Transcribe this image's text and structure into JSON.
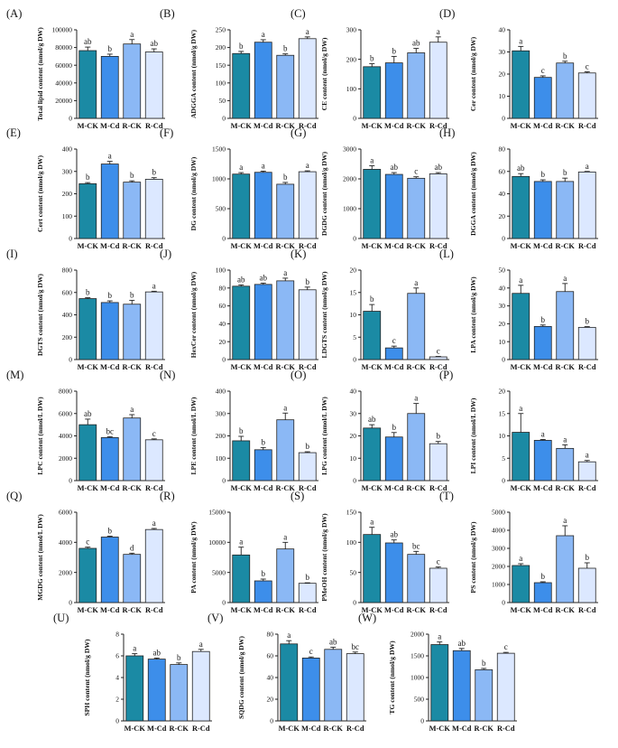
{
  "chart_data": [
    {
      "id": "A",
      "label": "(A)",
      "type": "bar",
      "categories": [
        "M-CK",
        "M-Cd",
        "R-CK",
        "R-Cd"
      ],
      "ylabel": "Total lipid content (nmol/g DW)",
      "ylim": [
        0,
        100000
      ],
      "yticks": [
        "0",
        "20000",
        "40000",
        "60000",
        "80000",
        "100000"
      ],
      "values": [
        76500,
        70000,
        84000,
        75000
      ],
      "errors": [
        4000,
        2500,
        5000,
        3500
      ],
      "letters": [
        "ab",
        "b",
        "a",
        "ab"
      ]
    },
    {
      "id": "B",
      "label": "(B)",
      "type": "bar",
      "categories": [
        "M-CK",
        "M-Cd",
        "R-CK",
        "R-Cd"
      ],
      "ylabel": "ADGGA content (nmol/g DW)",
      "ylim": [
        0,
        250
      ],
      "yticks": [
        "0",
        "50",
        "100",
        "150",
        "200",
        "250"
      ],
      "values": [
        183,
        215,
        178,
        225
      ],
      "errors": [
        6,
        7,
        4,
        5
      ],
      "letters": [
        "b",
        "a",
        "b",
        "a"
      ]
    },
    {
      "id": "C",
      "label": "(C)",
      "type": "bar",
      "categories": [
        "M-CK",
        "M-Cd",
        "R-CK",
        "R-Cd"
      ],
      "ylabel": "CE content (nmol/g DW)",
      "ylim": [
        0,
        300
      ],
      "yticks": [
        "0",
        "100",
        "200",
        "300"
      ],
      "values": [
        175,
        188,
        222,
        258
      ],
      "errors": [
        10,
        22,
        15,
        18
      ],
      "letters": [
        "b",
        "b",
        "ab",
        "a"
      ]
    },
    {
      "id": "D",
      "label": "(D)",
      "type": "bar",
      "categories": [
        "M-CK",
        "M-Cd",
        "R-CK",
        "R-Cd"
      ],
      "ylabel": "Cer content (nmol/g DW)",
      "ylim": [
        0,
        40
      ],
      "yticks": [
        "0",
        "10",
        "20",
        "30",
        "40"
      ],
      "values": [
        30.5,
        18.5,
        25,
        20.5
      ],
      "errors": [
        2,
        0.7,
        0.8,
        0.5
      ],
      "letters": [
        "a",
        "c",
        "b",
        "c"
      ]
    },
    {
      "id": "E",
      "label": "(E)",
      "type": "bar",
      "categories": [
        "M-CK",
        "M-Cd",
        "R-CK",
        "R-Cd"
      ],
      "ylabel": "Cert content (nmol/g DW)",
      "ylim": [
        0,
        400
      ],
      "yticks": [
        "0",
        "100",
        "200",
        "300",
        "400"
      ],
      "values": [
        245,
        333,
        252,
        265
      ],
      "errors": [
        5,
        12,
        6,
        7
      ],
      "letters": [
        "b",
        "a",
        "b",
        "b"
      ]
    },
    {
      "id": "F",
      "label": "(F)",
      "type": "bar",
      "categories": [
        "M-CK",
        "M-Cd",
        "R-CK",
        "R-Cd"
      ],
      "ylabel": "DG content (nmol/g DW)",
      "ylim": [
        0,
        1500
      ],
      "yticks": [
        "0",
        "500",
        "1000",
        "1500"
      ],
      "values": [
        1080,
        1110,
        910,
        1120
      ],
      "errors": [
        25,
        20,
        30,
        15
      ],
      "letters": [
        "a",
        "a",
        "b",
        "a"
      ]
    },
    {
      "id": "G",
      "label": "(G)",
      "type": "bar",
      "categories": [
        "M-CK",
        "M-Cd",
        "R-CK",
        "R-Cd"
      ],
      "ylabel": "DGDG content (nmol/g DW)",
      "ylim": [
        0,
        3000
      ],
      "yticks": [
        "0",
        "1000",
        "2000",
        "3000"
      ],
      "values": [
        2320,
        2150,
        2020,
        2170
      ],
      "errors": [
        120,
        60,
        50,
        40
      ],
      "letters": [
        "a",
        "ab",
        "c",
        "ab"
      ]
    },
    {
      "id": "H",
      "label": "(H)",
      "type": "bar",
      "categories": [
        "M-CK",
        "M-Cd",
        "R-CK",
        "R-Cd"
      ],
      "ylabel": "DGGA content (nmol/g DW)",
      "ylim": [
        0,
        80
      ],
      "yticks": [
        "0",
        "20",
        "40",
        "60",
        "80"
      ],
      "values": [
        55.5,
        51,
        51,
        59.5
      ],
      "errors": [
        2.5,
        1.5,
        3,
        0.5
      ],
      "letters": [
        "ab",
        "b",
        "b",
        "a"
      ]
    },
    {
      "id": "I",
      "label": "(I)",
      "type": "bar",
      "categories": [
        "M-CK",
        "M-Cd",
        "R-CK",
        "R-Cd"
      ],
      "ylabel": "DGTS content (nmol/g DW)",
      "ylim": [
        0,
        800
      ],
      "yticks": [
        "0",
        "200",
        "400",
        "600",
        "800"
      ],
      "values": [
        545,
        510,
        495,
        605
      ],
      "errors": [
        8,
        15,
        35,
        6
      ],
      "letters": [
        "b",
        "b",
        "b",
        "a"
      ]
    },
    {
      "id": "J",
      "label": "(J)",
      "type": "bar",
      "categories": [
        "M-CK",
        "M-Cd",
        "R-CK",
        "R-Cd"
      ],
      "ylabel": "HexCer content (nmol/g DW)",
      "ylim": [
        0,
        100
      ],
      "yticks": [
        "0",
        "20",
        "40",
        "60",
        "80",
        "100"
      ],
      "values": [
        82,
        84,
        88,
        78
      ],
      "errors": [
        1.5,
        1.5,
        3,
        3
      ],
      "letters": [
        "ab",
        "ab",
        "a",
        "b"
      ]
    },
    {
      "id": "K",
      "label": "(K)",
      "type": "bar",
      "categories": [
        "M-CK",
        "M-Cd",
        "R-CK",
        "R-Cd"
      ],
      "ylabel": "LDGTS content (nmol/g DW)",
      "ylim": [
        0,
        20
      ],
      "yticks": [
        "0",
        "5",
        "10",
        "15",
        "20"
      ],
      "values": [
        10.8,
        2.6,
        14.8,
        0.6
      ],
      "errors": [
        1.5,
        0.4,
        1.2,
        0.1
      ],
      "letters": [
        "b",
        "c",
        "a",
        "c"
      ]
    },
    {
      "id": "L",
      "label": "(L)",
      "type": "bar",
      "categories": [
        "M-CK",
        "M-Cd",
        "R-CK",
        "R-Cd"
      ],
      "ylabel": "LPA content (nmol/g DW)",
      "ylim": [
        0,
        50
      ],
      "yticks": [
        "0",
        "10",
        "20",
        "30",
        "40",
        "50"
      ],
      "values": [
        37,
        18.5,
        38,
        18
      ],
      "errors": [
        4.5,
        0.8,
        4.5,
        0.4
      ],
      "letters": [
        "a",
        "b",
        "a",
        "b"
      ]
    },
    {
      "id": "M",
      "label": "(M)",
      "type": "bar",
      "categories": [
        "M-CK",
        "M-Cd",
        "R-CK",
        "R-Cd"
      ],
      "ylabel": "LPC content (nmol/L DW)",
      "ylim": [
        0,
        8000
      ],
      "yticks": [
        "0",
        "2000",
        "4000",
        "6000",
        "8000"
      ],
      "values": [
        5000,
        3850,
        5600,
        3650
      ],
      "errors": [
        500,
        80,
        300,
        80
      ],
      "letters": [
        "ab",
        "bc",
        "a",
        "c"
      ]
    },
    {
      "id": "N",
      "label": "(N)",
      "type": "bar",
      "categories": [
        "M-CK",
        "M-Cd",
        "R-CK",
        "R-Cd"
      ],
      "ylabel": "LPE content (nmol/L DW)",
      "ylim": [
        0,
        400
      ],
      "yticks": [
        "0",
        "100",
        "200",
        "300",
        "400"
      ],
      "values": [
        178,
        138,
        272,
        125
      ],
      "errors": [
        20,
        10,
        30,
        4
      ],
      "letters": [
        "b",
        "b",
        "a",
        "b"
      ]
    },
    {
      "id": "O",
      "label": "(O)",
      "type": "bar",
      "categories": [
        "M-CK",
        "M-Cd",
        "R-CK",
        "R-Cd"
      ],
      "ylabel": "LPG content (nmol/L DW)",
      "ylim": [
        0,
        40
      ],
      "yticks": [
        "0",
        "10",
        "20",
        "30",
        "40"
      ],
      "values": [
        23.5,
        19.5,
        30,
        16.5
      ],
      "errors": [
        1.5,
        2,
        4.5,
        1
      ],
      "letters": [
        "ab",
        "b",
        "a",
        "b"
      ]
    },
    {
      "id": "P",
      "label": "(P)",
      "type": "bar",
      "categories": [
        "M-CK",
        "M-Cd",
        "R-CK",
        "R-Cd"
      ],
      "ylabel": "LPI content (nmol/L DW)",
      "ylim": [
        0,
        20
      ],
      "yticks": [
        "0",
        "5",
        "10",
        "15",
        "20"
      ],
      "values": [
        10.8,
        9.0,
        7.2,
        4.2
      ],
      "errors": [
        4.2,
        0.2,
        0.8,
        0.3
      ],
      "letters": [
        "a",
        "a",
        "a",
        "a"
      ]
    },
    {
      "id": "Q",
      "label": "(Q)",
      "type": "bar",
      "categories": [
        "M-CK",
        "M-Cd",
        "R-CK",
        "R-Cd"
      ],
      "ylabel": "MGDG content (nmol/L DW)",
      "ylim": [
        0,
        6000
      ],
      "yticks": [
        "0",
        "2000",
        "4000",
        "6000"
      ],
      "values": [
        3600,
        4350,
        3200,
        4850
      ],
      "errors": [
        80,
        60,
        80,
        70
      ],
      "letters": [
        "c",
        "b",
        "d",
        "a"
      ]
    },
    {
      "id": "R",
      "label": "(R)",
      "type": "bar",
      "categories": [
        "M-CK",
        "M-Cd",
        "R-CK",
        "R-Cd"
      ],
      "ylabel": "PA content (nmol/g DW)",
      "ylim": [
        0,
        15000
      ],
      "yticks": [
        "0",
        "5000",
        "10000",
        "15000"
      ],
      "values": [
        7900,
        3600,
        8900,
        3200
      ],
      "errors": [
        1300,
        300,
        1100,
        80
      ],
      "letters": [
        "a",
        "b",
        "a",
        "b"
      ]
    },
    {
      "id": "S",
      "label": "(S)",
      "type": "bar",
      "categories": [
        "M-CK",
        "M-Cd",
        "R-CK",
        "R-Cd"
      ],
      "ylabel": "PMeOH content (nmol/g DW)",
      "ylim": [
        0,
        150
      ],
      "yticks": [
        "0",
        "50",
        "100",
        "150"
      ],
      "values": [
        113,
        99,
        80,
        57
      ],
      "errors": [
        12,
        5,
        5,
        2
      ],
      "letters": [
        "a",
        "ab",
        "bc",
        "c"
      ]
    },
    {
      "id": "T",
      "label": "(T)",
      "type": "bar",
      "categories": [
        "M-CK",
        "M-Cd",
        "R-CK",
        "R-Cd"
      ],
      "ylabel": "PS content (nmol/g DW)",
      "ylim": [
        0,
        5000
      ],
      "yticks": [
        "0",
        "1000",
        "2000",
        "3000",
        "4000",
        "5000"
      ],
      "values": [
        2050,
        1100,
        3700,
        1900
      ],
      "errors": [
        100,
        50,
        550,
        300
      ],
      "letters": [
        "a",
        "b",
        "a",
        "b"
      ]
    },
    {
      "id": "U",
      "label": "(U)",
      "type": "bar",
      "categories": [
        "M-CK",
        "M-Cd",
        "R-CK",
        "R-Cd"
      ],
      "ylabel": "SPH content (nmol/g DW)",
      "ylim": [
        0,
        8
      ],
      "yticks": [
        "0",
        "2",
        "4",
        "6",
        "8"
      ],
      "values": [
        6.0,
        5.7,
        5.2,
        6.4
      ],
      "errors": [
        0.2,
        0.1,
        0.15,
        0.2
      ],
      "letters": [
        "a",
        "ab",
        "b",
        "a"
      ]
    },
    {
      "id": "V",
      "label": "(V)",
      "type": "bar",
      "categories": [
        "M-CK",
        "M-Cd",
        "R-CK",
        "R-Cd"
      ],
      "ylabel": "SQDG content (nmol/g DW)",
      "ylim": [
        0,
        80
      ],
      "yticks": [
        "0",
        "20",
        "40",
        "60",
        "80"
      ],
      "values": [
        71,
        58,
        66,
        62
      ],
      "errors": [
        3,
        1,
        2,
        1.5
      ],
      "letters": [
        "a",
        "c",
        "ab",
        "bc"
      ]
    },
    {
      "id": "W",
      "label": "(W)",
      "type": "bar",
      "categories": [
        "M-CK",
        "M-Cd",
        "R-CK",
        "R-Cd"
      ],
      "ylabel": "TG content (nmol/g DW)",
      "ylim": [
        0,
        2000
      ],
      "yticks": [
        "0",
        "500",
        "1000",
        "1500",
        "2000"
      ],
      "values": [
        1760,
        1620,
        1180,
        1560
      ],
      "errors": [
        60,
        50,
        30,
        20
      ],
      "letters": [
        "a",
        "ab",
        "b",
        "c"
      ]
    }
  ],
  "colors": {
    "M-CK": "#1b8aa4",
    "M-Cd": "#3d8eea",
    "R-CK": "#8bb8f5",
    "R-Cd": "#dce8ff"
  }
}
